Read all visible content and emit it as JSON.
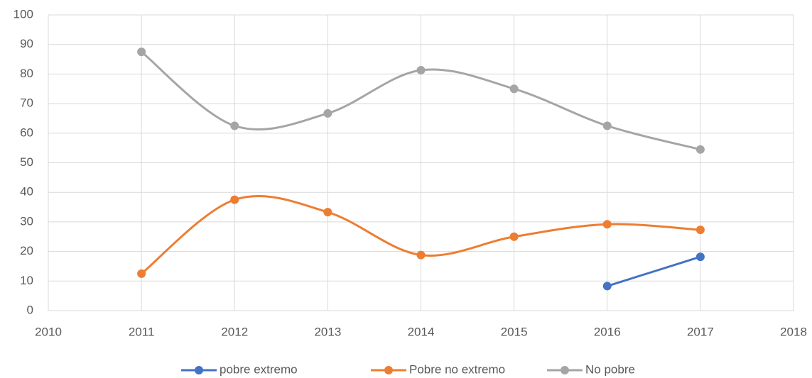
{
  "chart_data": {
    "type": "line",
    "x": [
      2011,
      2012,
      2013,
      2014,
      2015,
      2016,
      2017
    ],
    "series": [
      {
        "name": "pobre extremo",
        "color": "#4472c4",
        "values": [
          null,
          null,
          null,
          null,
          null,
          8.3,
          18.2
        ]
      },
      {
        "name": "Pobre no extremo",
        "color": "#ed7d31",
        "values": [
          12.5,
          37.5,
          33.3,
          18.8,
          25,
          29.2,
          27.3
        ]
      },
      {
        "name": "No pobre",
        "color": "#a5a5a5",
        "values": [
          87.5,
          62.5,
          66.7,
          81.3,
          75,
          62.5,
          54.5
        ]
      }
    ],
    "xlim": [
      2010,
      2018
    ],
    "xticks": [
      2010,
      2011,
      2012,
      2013,
      2014,
      2015,
      2016,
      2017,
      2018
    ],
    "ylim": [
      0,
      100
    ],
    "yticks": [
      0,
      10,
      20,
      30,
      40,
      50,
      60,
      70,
      80,
      90,
      100
    ],
    "grid": true,
    "smooth": true,
    "legend": "bottom"
  }
}
